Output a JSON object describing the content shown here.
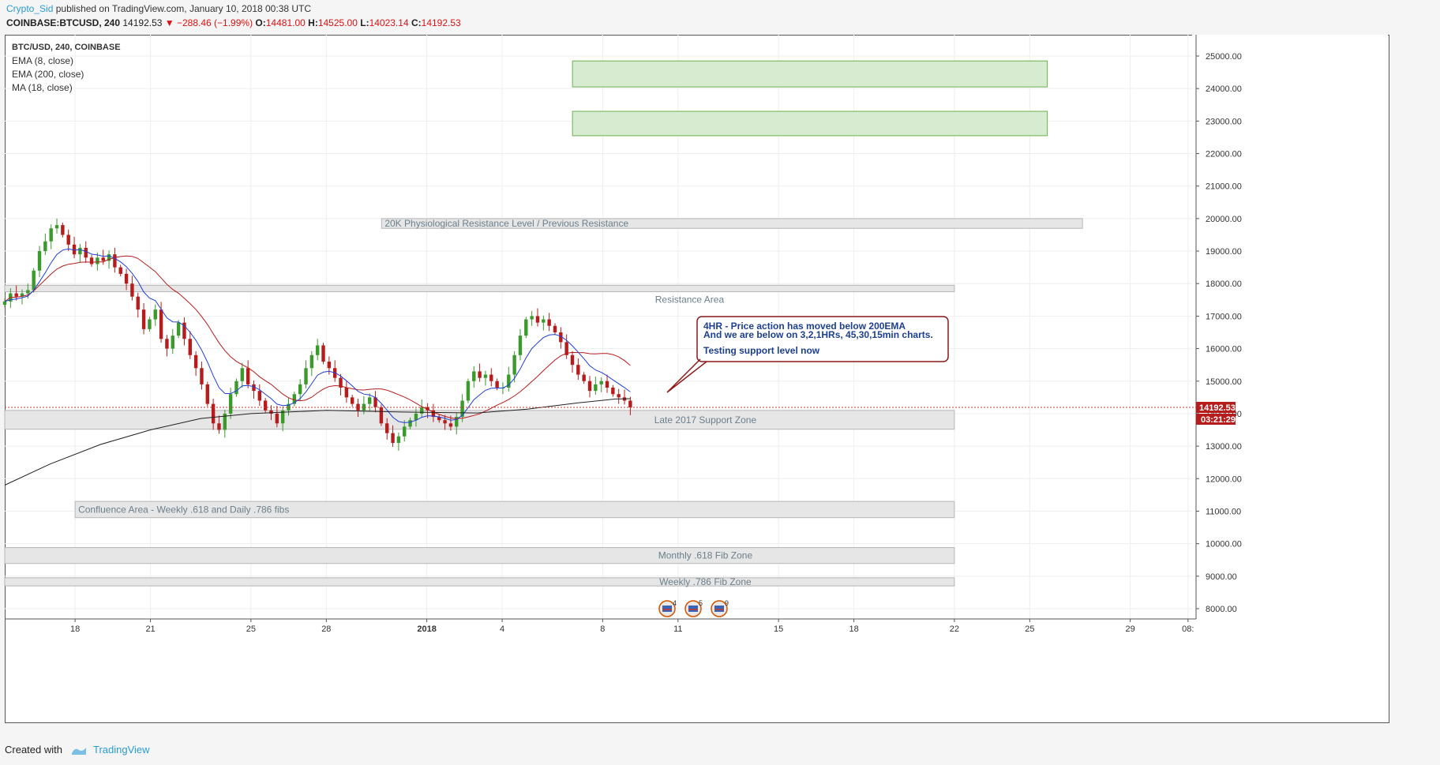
{
  "header": {
    "author": "Crypto_Sid",
    "published": "published on TradingView.com, January 10, 2018 00:38 UTC",
    "symbol": "COINBASE:BTCUSD, 240",
    "last": "14192.53",
    "change": "▼ −288.46 (−1.99%)",
    "o_label": "O:",
    "o_val": "14481.00",
    "h_label": "H:",
    "h_val": "14525.00",
    "l_label": "L:",
    "l_val": "14023.14",
    "c_label": "C:",
    "c_val": "14192.53"
  },
  "legend": {
    "title": "BTC/USD, 240, COINBASE",
    "ema8": "EMA (8, close)",
    "ema200": "EMA (200, close)",
    "ma18": "MA (18, close)"
  },
  "footer": {
    "created_with": "Created with",
    "brand": "TradingView"
  },
  "colors": {
    "up": "#3b9a2c",
    "down": "#b71c1c",
    "ema8": "#1e3fd8",
    "ema200": "#222222",
    "ma18": "#b71c1c",
    "zone_fill": "#e6e6e6",
    "target_fill": "#d6ebcf",
    "target_stroke": "#6bb14f",
    "callout": "#8b1a1a",
    "callout_text": "#1c3f8f"
  },
  "chart_data": {
    "type": "candlestick",
    "ylim": [
      7800,
      25800
    ],
    "y_ticks": [
      "25000.00",
      "24000.00",
      "23000.00",
      "22000.00",
      "21000.00",
      "20000.00",
      "19000.00",
      "18000.00",
      "17000.00",
      "16000.00",
      "15000.00",
      "14000.00",
      "13000.00",
      "12000.00",
      "11000.00",
      "10000.00",
      "9000.00",
      "8000.00"
    ],
    "x_ticks": [
      {
        "label": "18",
        "day": 18
      },
      {
        "label": "21",
        "day": 21
      },
      {
        "label": "25",
        "day": 25
      },
      {
        "label": "28",
        "day": 28
      },
      {
        "label": "2018",
        "day": 32
      },
      {
        "label": "4",
        "day": 35
      },
      {
        "label": "8",
        "day": 39
      },
      {
        "label": "11",
        "day": 42
      },
      {
        "label": "15",
        "day": 46
      },
      {
        "label": "18",
        "day": 49
      },
      {
        "label": "22",
        "day": 53
      },
      {
        "label": "25",
        "day": 56
      },
      {
        "label": "29",
        "day": 60
      },
      {
        "label": "08:",
        "day": 62.3
      }
    ],
    "x_range_days": [
      15.2,
      62.4
    ],
    "price_line": 14192.53,
    "price_tag": "14192.53",
    "countdown": "03:21:29",
    "closes": [
      17450,
      17700,
      17600,
      17700,
      17800,
      18400,
      19000,
      19300,
      19700,
      19800,
      19500,
      19200,
      18900,
      19100,
      18800,
      18600,
      18800,
      18700,
      18900,
      18500,
      18300,
      18000,
      17600,
      17200,
      16600,
      16900,
      17200,
      16300,
      16000,
      16400,
      16800,
      16300,
      15800,
      15400,
      14900,
      14300,
      13700,
      13500,
      14000,
      14600,
      15000,
      15400,
      14900,
      14700,
      14400,
      14100,
      14000,
      13700,
      14100,
      14300,
      14600,
      14900,
      15400,
      15800,
      16100,
      15600,
      15400,
      15100,
      14800,
      14500,
      14300,
      14100,
      14300,
      14500,
      14200,
      13700,
      13400,
      13100,
      13300,
      13600,
      13800,
      14000,
      14200,
      14100,
      13900,
      13800,
      13700,
      13600,
      13900,
      14400,
      15000,
      15300,
      15100,
      15200,
      15000,
      14800,
      14800,
      15200,
      15800,
      16400,
      16900,
      17000,
      16800,
      16900,
      16700,
      16500,
      16200,
      15800,
      15500,
      15200,
      15000,
      14700,
      14900,
      15000,
      14800,
      14600,
      14500,
      14400,
      14192
    ],
    "ema200_anchor": [
      [
        15.2,
        11800
      ],
      [
        17,
        12450
      ],
      [
        19,
        13050
      ],
      [
        21,
        13500
      ],
      [
        23,
        13850
      ],
      [
        25,
        14000
      ],
      [
        28,
        14100
      ],
      [
        31,
        14050
      ],
      [
        34,
        14020
      ],
      [
        36,
        14140
      ],
      [
        38,
        14330
      ],
      [
        39.5,
        14450
      ],
      [
        40.1,
        14460
      ]
    ],
    "zones": [
      {
        "label": "20K Physiological Resistance Level / Previous Resistance",
        "y_low": 19700,
        "y_high": 20000,
        "x0": 30.2,
        "x1": 58.1,
        "label_pos": "left"
      },
      {
        "label": "Resistance Area",
        "y_low": 17750,
        "y_high": 17950,
        "x0": 15.2,
        "x1": 53,
        "label_pos": "below-right"
      },
      {
        "label": "Late 2017 Support Zone",
        "y_low": 13520,
        "y_high": 14100,
        "x0": 15.2,
        "x1": 53,
        "label_pos": "right"
      },
      {
        "label": "Confluence Area -  Weekly .618 and Daily .786 fibs",
        "y_low": 10800,
        "y_high": 11300,
        "x0": 18,
        "x1": 53,
        "label_pos": "left"
      },
      {
        "label": "Monthly .618 Fib Zone",
        "y_low": 9390,
        "y_high": 9880,
        "x0": 15.2,
        "x1": 53,
        "label_pos": "right"
      },
      {
        "label": "Weekly .786 Fib Zone",
        "y_low": 8700,
        "y_high": 8950,
        "x0": 15.2,
        "x1": 53,
        "label_pos": "right"
      }
    ],
    "targets": [
      {
        "y_low": 24050,
        "y_high": 24850,
        "x0": 37.8,
        "x1": 56.7
      },
      {
        "y_low": 22550,
        "y_high": 23300,
        "x0": 37.8,
        "x1": 56.7
      }
    ],
    "callout": {
      "line1": "4HR - Price action has moved below 200EMA",
      "line2": "And we are below on 3,2,1HRs, 45,30,15min charts.",
      "line3": "Testing support level now"
    },
    "events": [
      "4",
      "5",
      "9"
    ]
  }
}
